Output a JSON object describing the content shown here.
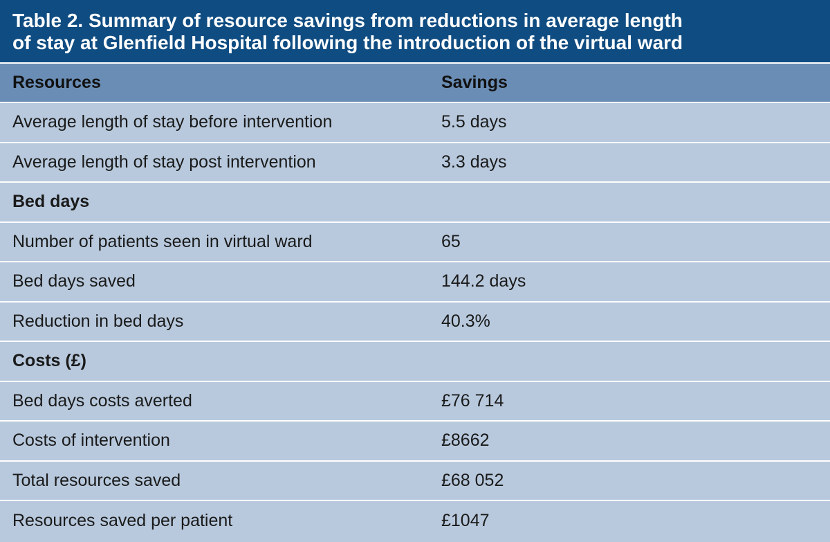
{
  "title": {
    "line1": "Table 2. Summary of resource savings from reductions in average length",
    "line2": "of stay at Glenfield Hospital following the introduction of the virtual ward"
  },
  "header": {
    "col1": "Resources",
    "col2": "Savings"
  },
  "rows": [
    {
      "label": "Average length of stay before intervention",
      "value": "5.5 days"
    },
    {
      "label": "Average length of stay post intervention",
      "value": "3.3 days"
    },
    {
      "label": "Bed days",
      "value": ""
    },
    {
      "label": "Number of patients seen in virtual ward",
      "value": "65"
    },
    {
      "label": "Bed days saved",
      "value": "144.2 days"
    },
    {
      "label": "Reduction in bed days",
      "value": "40.3%"
    },
    {
      "label": "Costs (£)",
      "value": ""
    },
    {
      "label": "Bed days costs averted",
      "value": "£76 714"
    },
    {
      "label": "Costs of intervention",
      "value": "£8662"
    },
    {
      "label": "Total resources saved",
      "value": "£68 052"
    },
    {
      "label": "Resources saved per patient",
      "value": "£1047"
    }
  ],
  "colors": {
    "title_bg": "#0f4c81",
    "header_bg": "#6a8db5",
    "row_bg": "#b8c9dd"
  }
}
